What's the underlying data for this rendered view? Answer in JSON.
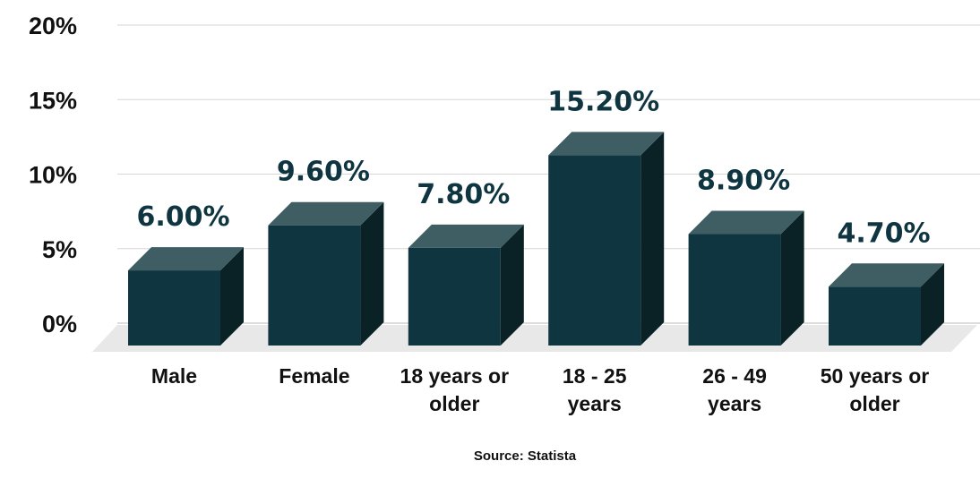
{
  "chart_data": {
    "type": "bar",
    "categories": [
      [
        "Male"
      ],
      [
        "Female"
      ],
      [
        "18 years or",
        "older"
      ],
      [
        "18 - 25",
        "years"
      ],
      [
        "26 - 49",
        "years"
      ],
      [
        "50 years or",
        "older"
      ]
    ],
    "values": [
      6.0,
      9.6,
      7.8,
      15.2,
      8.9,
      4.7
    ],
    "value_labels": [
      "6.00%",
      "9.60%",
      "7.80%",
      "15.20%",
      "8.90%",
      "4.70%"
    ],
    "y_ticks": [
      "0%",
      "5%",
      "10%",
      "15%",
      "20%"
    ],
    "ylim": [
      0,
      20
    ],
    "grid": true,
    "source": "Source: Statista",
    "colors": {
      "bar_front": "#0e3540",
      "bar_top": "#3e5e64",
      "bar_side": "#0a2126",
      "floor": "#e8e8e8",
      "grid": "#d6d6d6",
      "value_label": "#0e3540"
    }
  }
}
